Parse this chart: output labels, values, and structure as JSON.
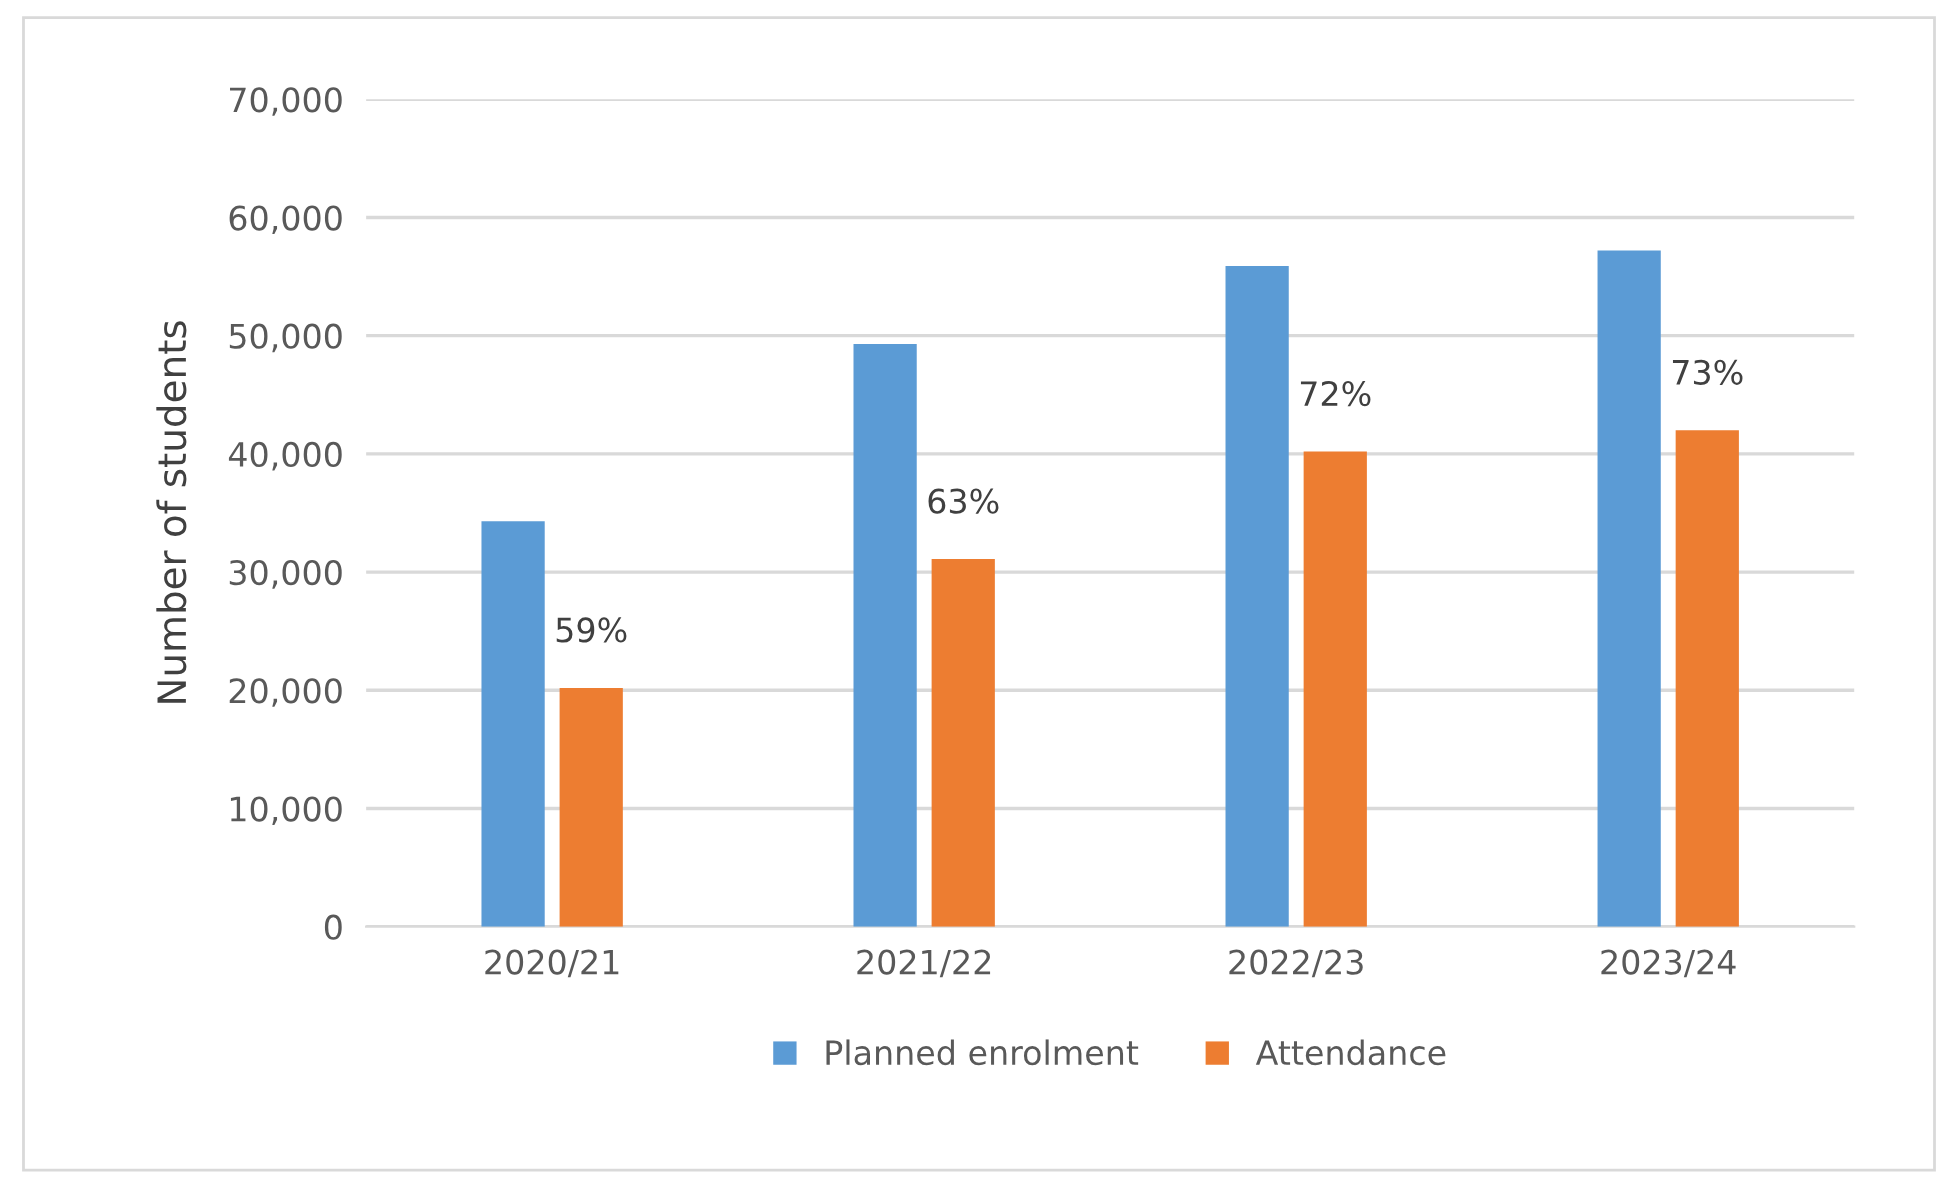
{
  "chart_data": {
    "type": "bar",
    "ylabel": "Number of students",
    "categories": [
      "2020/21",
      "2021/22",
      "2022/23",
      "2023/24"
    ],
    "series": [
      {
        "name": "Planned enrolment",
        "color": "#5b9bd5",
        "values": [
          34300,
          49300,
          55900,
          57200
        ]
      },
      {
        "name": "Attendance",
        "color": "#ed7d31",
        "values": [
          20200,
          31100,
          40200,
          42000
        ]
      }
    ],
    "annotations": [
      {
        "text": "59%",
        "x": "2020/21",
        "y": 20200
      },
      {
        "text": "63%",
        "x": "2021/22",
        "y": 31100
      },
      {
        "text": "72%",
        "x": "2022/23",
        "y": 40200
      },
      {
        "text": "73%",
        "x": "2023/24",
        "y": 42000
      }
    ],
    "ylim": [
      0,
      70000
    ],
    "yticks": [
      {
        "value": 0,
        "label": "0"
      },
      {
        "value": 10000,
        "label": "10,000"
      },
      {
        "value": 20000,
        "label": "20,000"
      },
      {
        "value": 30000,
        "label": "30,000"
      },
      {
        "value": 40000,
        "label": "40,000"
      },
      {
        "value": 50000,
        "label": "50,000"
      },
      {
        "value": 60000,
        "label": "60,000"
      },
      {
        "value": 70000,
        "label": "70,000"
      }
    ],
    "grid": "y",
    "legend": "bottom"
  }
}
